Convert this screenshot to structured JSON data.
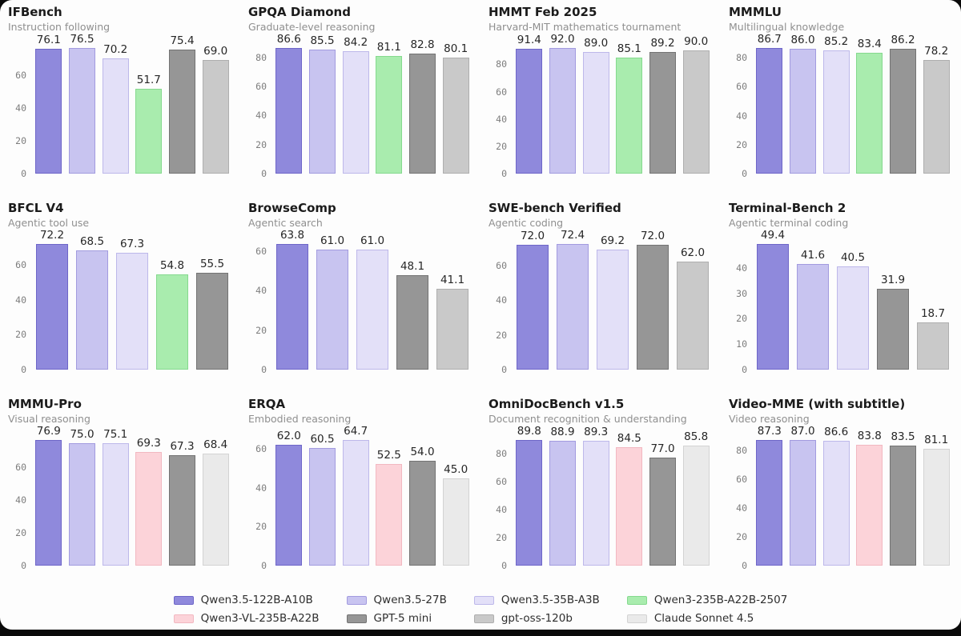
{
  "page": {
    "background": "#0a0a0a",
    "card_background": "#fdfdfd"
  },
  "series": [
    {
      "id": "qwen35-122b",
      "label": "Qwen3.5-122B-A10B",
      "fill": "#8f89dc",
      "edge": "#6e66c8"
    },
    {
      "id": "qwen35-27b",
      "label": "Qwen3.5-27B",
      "fill": "#c8c4f0",
      "edge": "#a29bdf"
    },
    {
      "id": "qwen35-35b",
      "label": "Qwen3.5-35B-A3B",
      "fill": "#e3e0f8",
      "edge": "#bdb8ea"
    },
    {
      "id": "qwen3-2507",
      "label": "Qwen3-235B-A22B-2507",
      "fill": "#a9ecae",
      "edge": "#85d98e"
    },
    {
      "id": "qwen3-vl",
      "label": "Qwen3-VL-235B-A22B",
      "fill": "#fcd3d9",
      "edge": "#f2b8c1"
    },
    {
      "id": "gpt5-mini",
      "label": "GPT-5 mini",
      "fill": "#969696",
      "edge": "#737373"
    },
    {
      "id": "gpt-oss",
      "label": "gpt-oss-120b",
      "fill": "#c9c9c9",
      "edge": "#aeaeae"
    },
    {
      "id": "claude-45",
      "label": "Claude Sonnet 4.5",
      "fill": "#eaeaea",
      "edge": "#d3d3d3"
    }
  ],
  "chart_data": [
    {
      "type": "bar",
      "title": "IFBench",
      "subtitle": "Instruction following",
      "yticks": [
        0,
        20,
        40,
        60
      ],
      "bars": [
        {
          "series": "qwen35-122b",
          "value": 76.1
        },
        {
          "series": "qwen35-27b",
          "value": 76.5
        },
        {
          "series": "qwen35-35b",
          "value": 70.2
        },
        {
          "series": "qwen3-2507",
          "value": 51.7
        },
        {
          "series": "gpt5-mini",
          "value": 75.4
        },
        {
          "series": "gpt-oss",
          "value": 69.0
        }
      ]
    },
    {
      "type": "bar",
      "title": "GPQA Diamond",
      "subtitle": "Graduate-level reasoning",
      "yticks": [
        0,
        20,
        40,
        60,
        80
      ],
      "bars": [
        {
          "series": "qwen35-122b",
          "value": 86.6
        },
        {
          "series": "qwen35-27b",
          "value": 85.5
        },
        {
          "series": "qwen35-35b",
          "value": 84.2
        },
        {
          "series": "qwen3-2507",
          "value": 81.1
        },
        {
          "series": "gpt5-mini",
          "value": 82.8
        },
        {
          "series": "gpt-oss",
          "value": 80.1
        }
      ]
    },
    {
      "type": "bar",
      "title": "HMMT Feb 2025",
      "subtitle": "Harvard-MIT mathematics tournament",
      "yticks": [
        0,
        20,
        40,
        60,
        80
      ],
      "bars": [
        {
          "series": "qwen35-122b",
          "value": 91.4
        },
        {
          "series": "qwen35-27b",
          "value": 92.0
        },
        {
          "series": "qwen35-35b",
          "value": 89.0
        },
        {
          "series": "qwen3-2507",
          "value": 85.1
        },
        {
          "series": "gpt5-mini",
          "value": 89.2
        },
        {
          "series": "gpt-oss",
          "value": 90.0
        }
      ]
    },
    {
      "type": "bar",
      "title": "MMMLU",
      "subtitle": "Multilingual knowledge",
      "yticks": [
        0,
        20,
        40,
        60,
        80
      ],
      "bars": [
        {
          "series": "qwen35-122b",
          "value": 86.7
        },
        {
          "series": "qwen35-27b",
          "value": 86.0
        },
        {
          "series": "qwen35-35b",
          "value": 85.2
        },
        {
          "series": "qwen3-2507",
          "value": 83.4
        },
        {
          "series": "gpt5-mini",
          "value": 86.2
        },
        {
          "series": "gpt-oss",
          "value": 78.2
        }
      ]
    },
    {
      "type": "bar",
      "title": "BFCL V4",
      "subtitle": "Agentic tool use",
      "yticks": [
        0,
        20,
        40,
        60
      ],
      "bars": [
        {
          "series": "qwen35-122b",
          "value": 72.2
        },
        {
          "series": "qwen35-27b",
          "value": 68.5
        },
        {
          "series": "qwen35-35b",
          "value": 67.3
        },
        {
          "series": "qwen3-2507",
          "value": 54.8
        },
        {
          "series": "gpt5-mini",
          "value": 55.5
        }
      ]
    },
    {
      "type": "bar",
      "title": "BrowseComp",
      "subtitle": "Agentic search",
      "yticks": [
        0,
        20,
        40,
        60
      ],
      "bars": [
        {
          "series": "qwen35-122b",
          "value": 63.8
        },
        {
          "series": "qwen35-27b",
          "value": 61.0
        },
        {
          "series": "qwen35-35b",
          "value": 61.0
        },
        {
          "series": "gpt5-mini",
          "value": 48.1
        },
        {
          "series": "gpt-oss",
          "value": 41.1
        }
      ]
    },
    {
      "type": "bar",
      "title": "SWE-bench Verified",
      "subtitle": "Agentic coding",
      "yticks": [
        0,
        20,
        40,
        60
      ],
      "bars": [
        {
          "series": "qwen35-122b",
          "value": 72.0
        },
        {
          "series": "qwen35-27b",
          "value": 72.4
        },
        {
          "series": "qwen35-35b",
          "value": 69.2
        },
        {
          "series": "gpt5-mini",
          "value": 72.0
        },
        {
          "series": "gpt-oss",
          "value": 62.0
        }
      ]
    },
    {
      "type": "bar",
      "title": "Terminal-Bench 2",
      "subtitle": "Agentic terminal coding",
      "yticks": [
        0,
        10,
        20,
        30,
        40
      ],
      "bars": [
        {
          "series": "qwen35-122b",
          "value": 49.4
        },
        {
          "series": "qwen35-27b",
          "value": 41.6
        },
        {
          "series": "qwen35-35b",
          "value": 40.5
        },
        {
          "series": "gpt5-mini",
          "value": 31.9
        },
        {
          "series": "gpt-oss",
          "value": 18.7
        }
      ]
    },
    {
      "type": "bar",
      "title": "MMMU-Pro",
      "subtitle": "Visual reasoning",
      "yticks": [
        0,
        20,
        40,
        60
      ],
      "bars": [
        {
          "series": "qwen35-122b",
          "value": 76.9
        },
        {
          "series": "qwen35-27b",
          "value": 75.0
        },
        {
          "series": "qwen35-35b",
          "value": 75.1
        },
        {
          "series": "qwen3-vl",
          "value": 69.3
        },
        {
          "series": "gpt5-mini",
          "value": 67.3
        },
        {
          "series": "claude-45",
          "value": 68.4
        }
      ]
    },
    {
      "type": "bar",
      "title": "ERQA",
      "subtitle": "Embodied reasoning",
      "yticks": [
        0,
        20,
        40,
        60
      ],
      "bars": [
        {
          "series": "qwen35-122b",
          "value": 62.0
        },
        {
          "series": "qwen35-27b",
          "value": 60.5
        },
        {
          "series": "qwen35-35b",
          "value": 64.7
        },
        {
          "series": "qwen3-vl",
          "value": 52.5
        },
        {
          "series": "gpt5-mini",
          "value": 54.0
        },
        {
          "series": "claude-45",
          "value": 45.0
        }
      ]
    },
    {
      "type": "bar",
      "title": "OmniDocBench v1.5",
      "subtitle": "Document recognition & understanding",
      "yticks": [
        0,
        20,
        40,
        60,
        80
      ],
      "bars": [
        {
          "series": "qwen35-122b",
          "value": 89.8
        },
        {
          "series": "qwen35-27b",
          "value": 88.9
        },
        {
          "series": "qwen35-35b",
          "value": 89.3
        },
        {
          "series": "qwen3-vl",
          "value": 84.5
        },
        {
          "series": "gpt5-mini",
          "value": 77.0
        },
        {
          "series": "claude-45",
          "value": 85.8
        }
      ]
    },
    {
      "type": "bar",
      "title": "Video-MME (with subtitle)",
      "subtitle": "Video reasoning",
      "yticks": [
        0,
        20,
        40,
        60,
        80
      ],
      "bars": [
        {
          "series": "qwen35-122b",
          "value": 87.3
        },
        {
          "series": "qwen35-27b",
          "value": 87.0
        },
        {
          "series": "qwen35-35b",
          "value": 86.6
        },
        {
          "series": "qwen3-vl",
          "value": 83.8
        },
        {
          "series": "gpt5-mini",
          "value": 83.5
        },
        {
          "series": "claude-45",
          "value": 81.1
        }
      ]
    }
  ],
  "layout": {
    "grid": {
      "columns": 4,
      "rows": 3
    },
    "value_label_decimals": 1,
    "headroom_factor": 1.12,
    "legend_position": "bottom-center"
  }
}
